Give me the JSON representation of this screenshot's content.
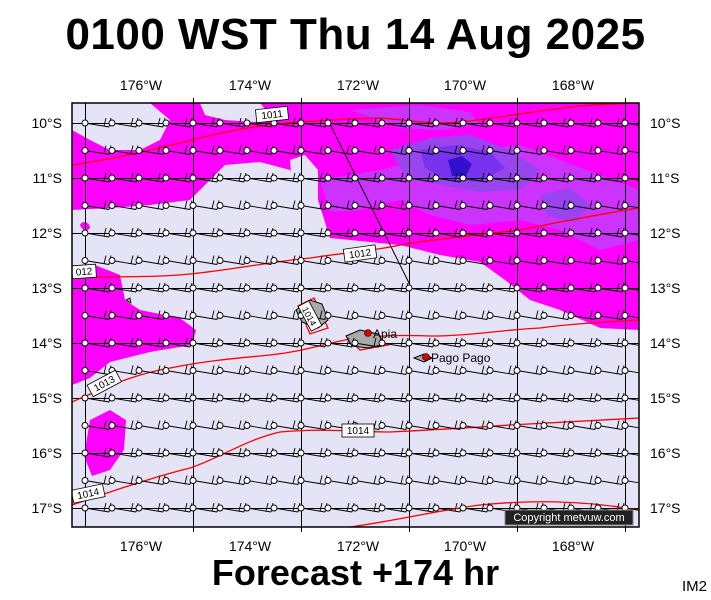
{
  "header": {
    "title": "0100 WST Thu 14 Aug 2025"
  },
  "footer": {
    "forecast_label": "Forecast +174 hr",
    "model_id": "IM2"
  },
  "map": {
    "copyright": "Copyright metvuw.com",
    "lon_labels": [
      "176°W",
      "174°W",
      "172°W",
      "170°W",
      "168°W"
    ],
    "lat_labels": [
      "10°S",
      "11°S",
      "12°S",
      "13°S",
      "14°S",
      "15°S",
      "16°S",
      "17°S"
    ],
    "isobar_labels": [
      "1011",
      "1012",
      "012",
      "1013",
      "1014",
      "1014",
      "1014"
    ],
    "places": [
      "Apia",
      "Pago Pago"
    ],
    "colors": {
      "background": "#e4e4f6",
      "rain_light": "#ff00ff",
      "rain_mid": "#cc33ff",
      "rain_heavy": "#7733ee",
      "rain_core": "#3311cc",
      "isobar": "#ff0000"
    }
  }
}
